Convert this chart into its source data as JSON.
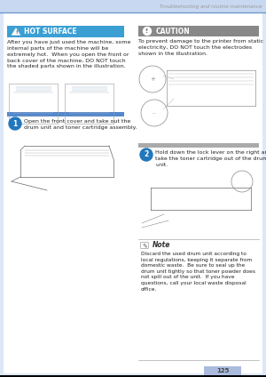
{
  "page_bg": "#dce8f8",
  "content_bg": "#ffffff",
  "header_bar_color": "#c8d8f0",
  "header_line_color": "#7099cc",
  "header_text": "Troubleshooting and routine maintenance",
  "header_text_color": "#999999",
  "hot_surface_bar_color": "#3b9fd4",
  "hot_surface_bar_text": "HOT SURFACE",
  "hot_surface_body": "After you have just used the machine, some\ninternal parts of the machine will be\nextremely hot.  When you open the front or\nback cover of the machine, DO NOT touch\nthe shaded parts shown in the illustration.",
  "caution_bar_color": "#888888",
  "caution_bar_text": "CAUTION",
  "caution_body": "To prevent damage to the printer from static\nelectricity, DO NOT touch the electrodes\nshown in the illustration.",
  "step1_circle_color": "#2277bb",
  "step1_number": "1",
  "step1_text": "Open the front cover and take out the\ndrum unit and toner cartridge assembly.",
  "step2_circle_color": "#2277bb",
  "step2_number": "2",
  "step2_text": "Hold down the lock lever on the right and\ntake the toner cartridge out of the drum\nunit.",
  "step1_bar_color": "#5588cc",
  "step2_bar_color": "#aaaaaa",
  "note_title": "Note",
  "note_body": "Discard the used drum unit according to\nlocal regulations, keeping it separate from\ndomestic waste.  Be sure to seal up the\ndrum unit tightly so that toner powder does\nnot spill out of the unit.  If you have\nquestions, call your local waste disposal\noffice.",
  "page_number": "125",
  "page_num_bar_color": "#aabbdd",
  "text_color": "#222222",
  "small_text_size": 4.2,
  "body_text_size": 4.5,
  "bar_text_size": 5.5,
  "step_text_size": 4.5
}
